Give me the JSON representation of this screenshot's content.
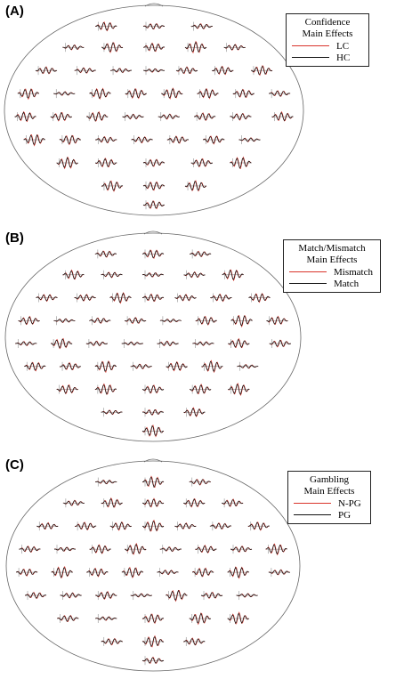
{
  "panels": [
    {
      "label": "(A)",
      "legend": {
        "title_lines": [
          "Confidence",
          "Main Effects"
        ],
        "entries": [
          {
            "label": "LC",
            "color": "#d9342b"
          },
          {
            "label": "HC",
            "color": "#111111"
          }
        ]
      }
    },
    {
      "label": "(B)",
      "legend": {
        "title_lines": [
          "Match/Mismatch",
          "Main Effects"
        ],
        "entries": [
          {
            "label": "Mismatch",
            "color": "#d9342b"
          },
          {
            "label": "Match",
            "color": "#111111"
          }
        ]
      }
    },
    {
      "label": "(C)",
      "legend": {
        "title_lines": [
          "Gambling",
          "Main Effects"
        ],
        "entries": [
          {
            "label": "N-PG",
            "color": "#d9342b"
          },
          {
            "label": "PG",
            "color": "#111111"
          }
        ]
      }
    }
  ],
  "colors": {
    "head_outline": "#666666",
    "trace_red": "#d9342b",
    "trace_black": "#111111"
  }
}
